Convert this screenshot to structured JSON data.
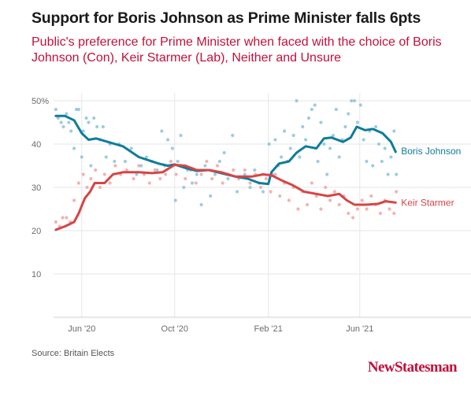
{
  "title": "Support for Boris Johnson as Prime Minister falls 6pts",
  "subtitle": "Public's preference for Prime Minister when faced with the choice of Boris Johnson (Con), Keir Starmer (Lab), Neither and Unsure",
  "source": "Source: Britain Elects",
  "brand": "NewStatesman",
  "colors": {
    "johnson": "#0e7c9b",
    "starmer": "#d64545",
    "johnson_dots": "#8cc4d8",
    "starmer_dots": "#f0a6a6",
    "subtitle": "#c2103a",
    "grid": "#e6e6e6"
  },
  "chart_data": {
    "type": "line",
    "x_unit": "date",
    "xlim": [
      "2020-04-25",
      "2021-10-25"
    ],
    "ylim": [
      0,
      50
    ],
    "y_ticks": [
      10,
      20,
      30,
      40,
      50
    ],
    "y_tick_labels": [
      "10",
      "20",
      "30",
      "40",
      "50%"
    ],
    "x_ticks": [
      "2020-06-01",
      "2020-10-01",
      "2021-02-01",
      "2021-06-01"
    ],
    "x_tick_labels": [
      "Jun '20",
      "Oct '20",
      "Feb '21",
      "Jun '21"
    ],
    "grid": true,
    "series": [
      {
        "name": "Boris Johnson",
        "line": [
          [
            "2020-04-28",
            46.5
          ],
          [
            "2020-05-10",
            46.5
          ],
          [
            "2020-05-22",
            45.5
          ],
          [
            "2020-06-01",
            42.5
          ],
          [
            "2020-06-10",
            41
          ],
          [
            "2020-06-20",
            41.3
          ],
          [
            "2020-07-05",
            40.5
          ],
          [
            "2020-07-25",
            39.5
          ],
          [
            "2020-08-15",
            37
          ],
          [
            "2020-09-10",
            35.5
          ],
          [
            "2020-09-22",
            35
          ],
          [
            "2020-10-01",
            35.3
          ],
          [
            "2020-10-15",
            34.5
          ],
          [
            "2020-10-30",
            33.8
          ],
          [
            "2020-11-15",
            34
          ],
          [
            "2020-12-01",
            33.3
          ],
          [
            "2020-12-20",
            32.5
          ],
          [
            "2021-01-05",
            32
          ],
          [
            "2021-01-20",
            31
          ],
          [
            "2021-02-01",
            30.8
          ],
          [
            "2021-02-05",
            33.5
          ],
          [
            "2021-02-15",
            35.5
          ],
          [
            "2021-02-28",
            36
          ],
          [
            "2021-03-10",
            38
          ],
          [
            "2021-03-22",
            39.5
          ],
          [
            "2021-04-05",
            39
          ],
          [
            "2021-04-15",
            41.3
          ],
          [
            "2021-04-25",
            41.5
          ],
          [
            "2021-05-10",
            40.5
          ],
          [
            "2021-05-20",
            41.5
          ],
          [
            "2021-05-28",
            44
          ],
          [
            "2021-06-08",
            43.2
          ],
          [
            "2021-06-18",
            43.5
          ],
          [
            "2021-07-01",
            42.5
          ],
          [
            "2021-07-12",
            40.5
          ],
          [
            "2021-07-18",
            38.2
          ]
        ],
        "dots": [
          [
            "2020-04-28",
            48
          ],
          [
            "2020-05-01",
            46
          ],
          [
            "2020-05-05",
            45
          ],
          [
            "2020-05-08",
            44
          ],
          [
            "2020-05-12",
            47
          ],
          [
            "2020-05-15",
            45
          ],
          [
            "2020-05-18",
            43
          ],
          [
            "2020-05-22",
            39
          ],
          [
            "2020-05-25",
            48
          ],
          [
            "2020-05-28",
            48
          ],
          [
            "2020-06-01",
            37
          ],
          [
            "2020-06-03",
            43
          ],
          [
            "2020-06-07",
            46
          ],
          [
            "2020-06-10",
            45
          ],
          [
            "2020-06-13",
            35
          ],
          [
            "2020-06-17",
            46
          ],
          [
            "2020-06-21",
            44
          ],
          [
            "2020-06-25",
            41
          ],
          [
            "2020-06-29",
            44
          ],
          [
            "2020-07-03",
            37
          ],
          [
            "2020-07-08",
            40
          ],
          [
            "2020-07-14",
            36
          ],
          [
            "2020-07-20",
            40
          ],
          [
            "2020-07-28",
            36
          ],
          [
            "2020-08-05",
            39
          ],
          [
            "2020-08-12",
            33
          ],
          [
            "2020-08-18",
            35
          ],
          [
            "2020-08-25",
            37
          ],
          [
            "2020-09-01",
            36
          ],
          [
            "2020-09-08",
            34
          ],
          [
            "2020-09-14",
            43
          ],
          [
            "2020-09-18",
            35
          ],
          [
            "2020-09-22",
            41
          ],
          [
            "2020-09-28",
            39
          ],
          [
            "2020-10-02",
            27
          ],
          [
            "2020-10-05",
            36
          ],
          [
            "2020-10-09",
            42
          ],
          [
            "2020-10-13",
            30
          ],
          [
            "2020-10-18",
            34
          ],
          [
            "2020-10-24",
            31
          ],
          [
            "2020-10-30",
            33
          ],
          [
            "2020-11-05",
            26
          ],
          [
            "2020-11-10",
            35
          ],
          [
            "2020-11-17",
            28
          ],
          [
            "2020-11-23",
            33
          ],
          [
            "2020-11-29",
            36
          ],
          [
            "2020-12-05",
            38
          ],
          [
            "2020-12-10",
            32
          ],
          [
            "2020-12-16",
            42
          ],
          [
            "2020-12-22",
            29
          ],
          [
            "2021-01-01",
            33
          ],
          [
            "2021-01-08",
            30
          ],
          [
            "2021-01-14",
            34
          ],
          [
            "2021-01-20",
            31
          ],
          [
            "2021-01-25",
            29
          ],
          [
            "2021-02-02",
            40
          ],
          [
            "2021-02-06",
            33
          ],
          [
            "2021-02-10",
            41
          ],
          [
            "2021-02-14",
            35
          ],
          [
            "2021-02-18",
            37
          ],
          [
            "2021-02-22",
            43
          ],
          [
            "2021-02-26",
            36
          ],
          [
            "2021-03-02",
            39
          ],
          [
            "2021-03-06",
            42
          ],
          [
            "2021-03-10",
            50
          ],
          [
            "2021-03-14",
            37
          ],
          [
            "2021-03-18",
            44
          ],
          [
            "2021-03-22",
            41
          ],
          [
            "2021-03-26",
            46
          ],
          [
            "2021-03-30",
            48
          ],
          [
            "2021-04-03",
            49
          ],
          [
            "2021-04-07",
            36
          ],
          [
            "2021-04-11",
            45
          ],
          [
            "2021-04-15",
            40
          ],
          [
            "2021-04-19",
            33
          ],
          [
            "2021-04-23",
            39
          ],
          [
            "2021-04-27",
            42
          ],
          [
            "2021-05-01",
            48
          ],
          [
            "2021-05-05",
            37
          ],
          [
            "2021-05-09",
            41
          ],
          [
            "2021-05-13",
            44
          ],
          [
            "2021-05-17",
            47
          ],
          [
            "2021-05-21",
            50
          ],
          [
            "2021-05-25",
            50
          ],
          [
            "2021-05-29",
            45
          ],
          [
            "2021-06-02",
            49
          ],
          [
            "2021-06-06",
            41
          ],
          [
            "2021-06-10",
            36
          ],
          [
            "2021-06-14",
            43
          ],
          [
            "2021-06-18",
            35
          ],
          [
            "2021-06-22",
            44
          ],
          [
            "2021-06-26",
            40
          ],
          [
            "2021-06-30",
            36
          ],
          [
            "2021-07-04",
            39
          ],
          [
            "2021-07-08",
            33
          ],
          [
            "2021-07-12",
            37
          ],
          [
            "2021-07-16",
            43
          ],
          [
            "2021-07-19",
            33
          ]
        ]
      },
      {
        "name": "Keir Starmer",
        "line": [
          [
            "2020-04-28",
            20.2
          ],
          [
            "2020-05-10",
            21
          ],
          [
            "2020-05-22",
            22
          ],
          [
            "2020-05-28",
            24
          ],
          [
            "2020-06-05",
            27.5
          ],
          [
            "2020-06-12",
            29
          ],
          [
            "2020-06-18",
            31
          ],
          [
            "2020-07-01",
            31
          ],
          [
            "2020-07-12",
            33
          ],
          [
            "2020-07-25",
            33.5
          ],
          [
            "2020-08-15",
            33.5
          ],
          [
            "2020-09-01",
            33.3
          ],
          [
            "2020-09-15",
            33.5
          ],
          [
            "2020-10-01",
            35.2
          ],
          [
            "2020-10-15",
            35
          ],
          [
            "2020-10-30",
            34
          ],
          [
            "2020-11-15",
            34
          ],
          [
            "2020-12-01",
            33.5
          ],
          [
            "2020-12-20",
            32.5
          ],
          [
            "2021-01-10",
            32.5
          ],
          [
            "2021-01-25",
            33
          ],
          [
            "2021-02-05",
            32.8
          ],
          [
            "2021-02-20",
            31.5
          ],
          [
            "2021-03-05",
            30.5
          ],
          [
            "2021-03-20",
            29
          ],
          [
            "2021-04-05",
            28.5
          ],
          [
            "2021-04-20",
            28
          ],
          [
            "2021-05-05",
            28.5
          ],
          [
            "2021-05-15",
            27
          ],
          [
            "2021-05-25",
            26
          ],
          [
            "2021-06-10",
            26
          ],
          [
            "2021-06-25",
            26.2
          ],
          [
            "2021-07-05",
            26.8
          ],
          [
            "2021-07-18",
            26.5
          ]
        ],
        "dots": [
          [
            "2020-04-28",
            22
          ],
          [
            "2020-05-03",
            21
          ],
          [
            "2020-05-07",
            23
          ],
          [
            "2020-05-12",
            23
          ],
          [
            "2020-05-17",
            22
          ],
          [
            "2020-05-22",
            27
          ],
          [
            "2020-05-28",
            31
          ],
          [
            "2020-06-03",
            33
          ],
          [
            "2020-06-08",
            30
          ],
          [
            "2020-06-13",
            32
          ],
          [
            "2020-06-19",
            34
          ],
          [
            "2020-06-25",
            30
          ],
          [
            "2020-07-01",
            33
          ],
          [
            "2020-07-08",
            31
          ],
          [
            "2020-07-15",
            35
          ],
          [
            "2020-07-22",
            33
          ],
          [
            "2020-07-30",
            34
          ],
          [
            "2020-08-08",
            32
          ],
          [
            "2020-08-15",
            35
          ],
          [
            "2020-08-22",
            33
          ],
          [
            "2020-08-29",
            31
          ],
          [
            "2020-09-05",
            34
          ],
          [
            "2020-09-12",
            32
          ],
          [
            "2020-09-19",
            33
          ],
          [
            "2020-09-26",
            36
          ],
          [
            "2020-10-03",
            33
          ],
          [
            "2020-10-09",
            35
          ],
          [
            "2020-10-15",
            32
          ],
          [
            "2020-10-22",
            34
          ],
          [
            "2020-10-29",
            31
          ],
          [
            "2020-11-05",
            33
          ],
          [
            "2020-11-12",
            36
          ],
          [
            "2020-11-19",
            32
          ],
          [
            "2020-11-26",
            35
          ],
          [
            "2020-12-03",
            31
          ],
          [
            "2020-12-10",
            33
          ],
          [
            "2020-12-17",
            34
          ],
          [
            "2020-12-24",
            32
          ],
          [
            "2021-01-01",
            34
          ],
          [
            "2021-01-08",
            31
          ],
          [
            "2021-01-15",
            33
          ],
          [
            "2021-01-22",
            30
          ],
          [
            "2021-01-29",
            32
          ],
          [
            "2021-02-04",
            29
          ],
          [
            "2021-02-10",
            33
          ],
          [
            "2021-02-16",
            28
          ],
          [
            "2021-02-22",
            31
          ],
          [
            "2021-02-28",
            27
          ],
          [
            "2021-03-06",
            30
          ],
          [
            "2021-03-12",
            25
          ],
          [
            "2021-03-18",
            29
          ],
          [
            "2021-03-24",
            26
          ],
          [
            "2021-03-30",
            31
          ],
          [
            "2021-04-05",
            28
          ],
          [
            "2021-04-11",
            25
          ],
          [
            "2021-04-17",
            30
          ],
          [
            "2021-04-23",
            27
          ],
          [
            "2021-04-29",
            29
          ],
          [
            "2021-05-05",
            26
          ],
          [
            "2021-05-11",
            28
          ],
          [
            "2021-05-17",
            24
          ],
          [
            "2021-05-23",
            23
          ],
          [
            "2021-05-29",
            25
          ],
          [
            "2021-06-04",
            27
          ],
          [
            "2021-06-10",
            25
          ],
          [
            "2021-06-16",
            28
          ],
          [
            "2021-06-22",
            26
          ],
          [
            "2021-06-28",
            24
          ],
          [
            "2021-07-04",
            27
          ],
          [
            "2021-07-10",
            25
          ],
          [
            "2021-07-16",
            24
          ],
          [
            "2021-07-19",
            29
          ]
        ]
      }
    ]
  }
}
